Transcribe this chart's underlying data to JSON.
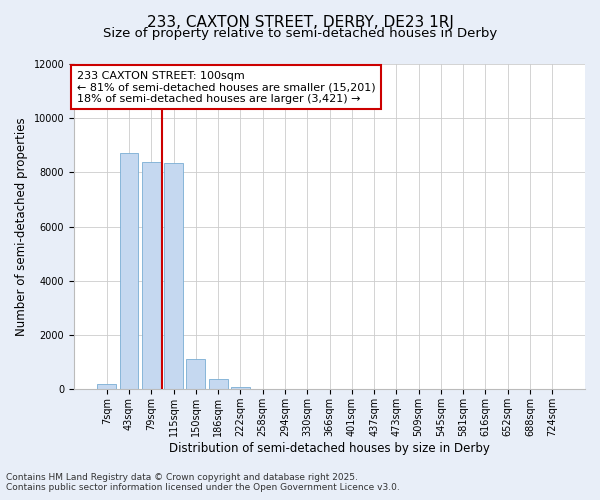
{
  "title1": "233, CAXTON STREET, DERBY, DE23 1RJ",
  "title2": "Size of property relative to semi-detached houses in Derby",
  "xlabel": "Distribution of semi-detached houses by size in Derby",
  "ylabel": "Number of semi-detached properties",
  "categories": [
    "7sqm",
    "43sqm",
    "79sqm",
    "115sqm",
    "150sqm",
    "186sqm",
    "222sqm",
    "258sqm",
    "294sqm",
    "330sqm",
    "366sqm",
    "401sqm",
    "437sqm",
    "473sqm",
    "509sqm",
    "545sqm",
    "581sqm",
    "616sqm",
    "652sqm",
    "688sqm",
    "724sqm"
  ],
  "values": [
    200,
    8700,
    8400,
    8350,
    1100,
    380,
    70,
    5,
    0,
    0,
    0,
    0,
    0,
    0,
    0,
    0,
    0,
    0,
    0,
    0,
    0
  ],
  "bar_color": "#c5d8f0",
  "bar_edge_color": "#7aadd4",
  "vline_color": "#cc0000",
  "annotation_line1": "233 CAXTON STREET: 100sqm",
  "annotation_line2": "← 81% of semi-detached houses are smaller (15,201)",
  "annotation_line3": "18% of semi-detached houses are larger (3,421) →",
  "annotation_box_color": "#cc0000",
  "ylim": [
    0,
    12000
  ],
  "yticks": [
    0,
    2000,
    4000,
    6000,
    8000,
    10000,
    12000
  ],
  "footnote1": "Contains HM Land Registry data © Crown copyright and database right 2025.",
  "footnote2": "Contains public sector information licensed under the Open Government Licence v3.0.",
  "bg_color": "#e8eef8",
  "plot_bg_color": "#ffffff",
  "grid_color": "#cccccc",
  "title1_fontsize": 11,
  "title2_fontsize": 9.5,
  "annot_fontsize": 8,
  "tick_fontsize": 7,
  "label_fontsize": 8.5,
  "footnote_fontsize": 6.5,
  "vline_xindex": 2.5
}
